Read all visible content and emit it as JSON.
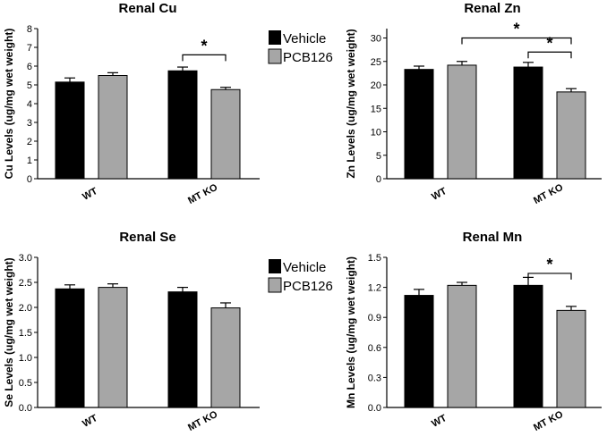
{
  "legend": {
    "items": [
      {
        "label": "Vehicle",
        "color": "#000000"
      },
      {
        "label": "PCB126",
        "color": "#a6a6a6"
      }
    ]
  },
  "significance_marker": "*",
  "chart_data": [
    {
      "type": "bar",
      "title": "Renal Cu",
      "ylabel": "Cu Levels (ug/mg wet weight)",
      "xlabel": "",
      "categories": [
        "WT",
        "MT KO"
      ],
      "ylim": [
        0,
        8
      ],
      "yticks": [
        "0",
        "1",
        "2",
        "3",
        "4",
        "5",
        "6",
        "7",
        "8"
      ],
      "series": [
        {
          "name": "Vehicle",
          "values": [
            5.15,
            5.75
          ],
          "errors": [
            0.22,
            0.2
          ]
        },
        {
          "name": "PCB126",
          "values": [
            5.5,
            4.75
          ],
          "errors": [
            0.15,
            0.12
          ]
        }
      ],
      "significance": [
        {
          "category": 1,
          "from_series": 0,
          "to_series": 1,
          "level": 6.6
        }
      ]
    },
    {
      "type": "bar",
      "title": "Renal Zn",
      "ylabel": "Zn Levels (ug/mg wet weight)",
      "xlabel": "",
      "categories": [
        "WT",
        "MT KO"
      ],
      "ylim": [
        0,
        32
      ],
      "yticks": [
        "0",
        "5",
        "10",
        "15",
        "20",
        "25",
        "30"
      ],
      "series": [
        {
          "name": "Vehicle",
          "values": [
            23.3,
            23.8
          ],
          "errors": [
            0.7,
            1.0
          ]
        },
        {
          "name": "PCB126",
          "values": [
            24.2,
            18.5
          ],
          "errors": [
            0.8,
            0.7
          ]
        }
      ],
      "significance": [
        {
          "from": [
            0,
            1
          ],
          "to": [
            1,
            1
          ],
          "level": 30.0
        },
        {
          "from": [
            1,
            0
          ],
          "to": [
            1,
            1
          ],
          "level": 27.0
        }
      ]
    },
    {
      "type": "bar",
      "title": "Renal Se",
      "ylabel": "Se Levels (ug/mg wet weight)",
      "xlabel": "",
      "categories": [
        "WT",
        "MT KO"
      ],
      "ylim": [
        0,
        3.0
      ],
      "yticks": [
        "0.0",
        "0.5",
        "1.0",
        "1.5",
        "2.0",
        "2.5",
        "3.0"
      ],
      "series": [
        {
          "name": "Vehicle",
          "values": [
            2.37,
            2.31
          ],
          "errors": [
            0.08,
            0.09
          ]
        },
        {
          "name": "PCB126",
          "values": [
            2.4,
            1.99
          ],
          "errors": [
            0.07,
            0.1
          ]
        }
      ],
      "significance": []
    },
    {
      "type": "bar",
      "title": "Renal Mn",
      "ylabel": "Mn Levels (ug/mg wet weight)",
      "xlabel": "",
      "categories": [
        "WT",
        "MT KO"
      ],
      "ylim": [
        0,
        1.5
      ],
      "yticks": [
        "0.0",
        "0.3",
        "0.6",
        "0.9",
        "1.2",
        "1.5"
      ],
      "series": [
        {
          "name": "Vehicle",
          "values": [
            1.12,
            1.22
          ],
          "errors": [
            0.06,
            0.08
          ]
        },
        {
          "name": "PCB126",
          "values": [
            1.22,
            0.97
          ],
          "errors": [
            0.03,
            0.04
          ]
        }
      ],
      "significance": [
        {
          "from": [
            1,
            0
          ],
          "to": [
            1,
            1
          ],
          "level": 1.34
        }
      ]
    }
  ]
}
